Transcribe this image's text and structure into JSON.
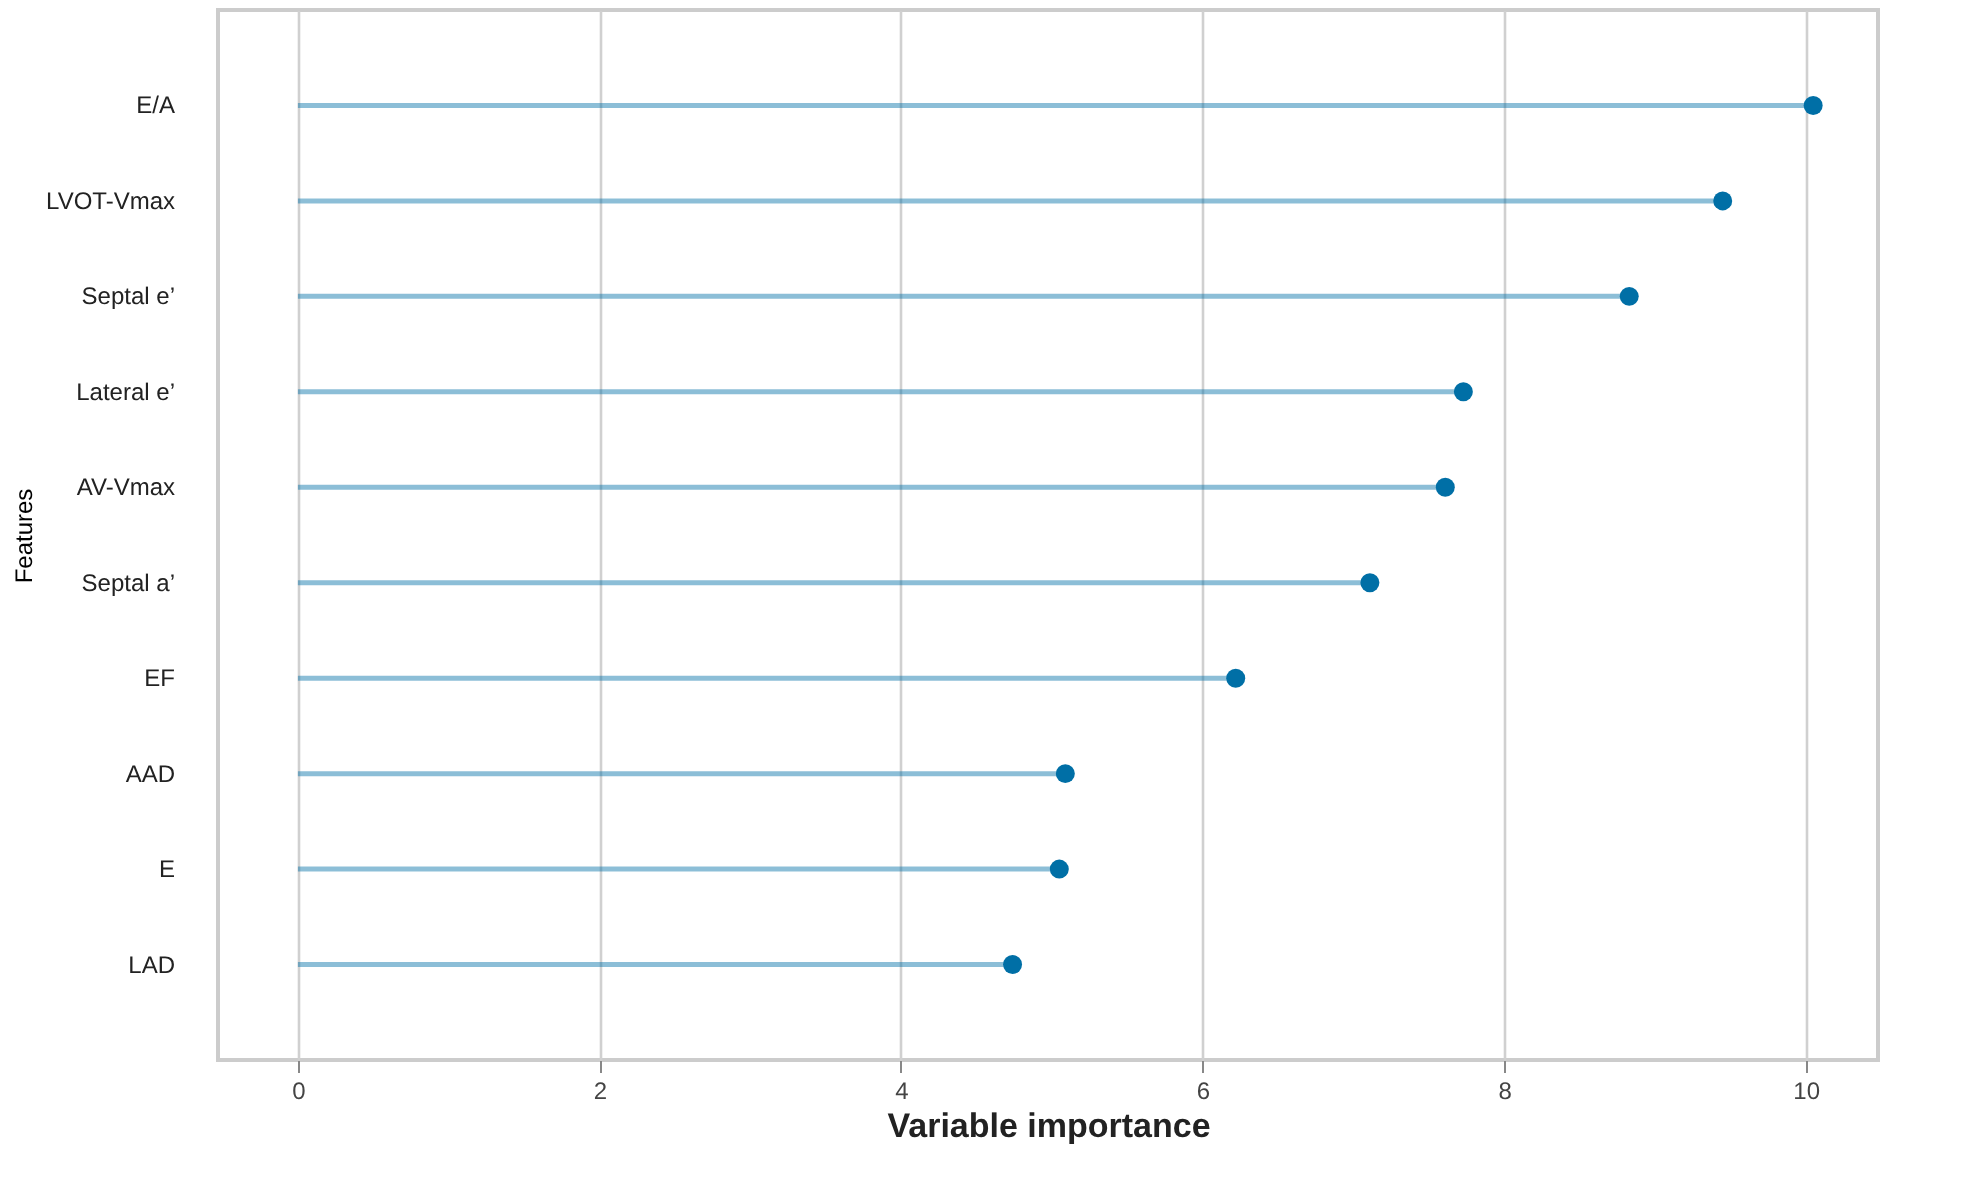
{
  "chart_data": {
    "type": "lollipop",
    "orientation": "horizontal",
    "categories": [
      "E/A",
      "LVOT-Vmax",
      "Septal e’",
      "Lateral e’",
      "AV-Vmax",
      "Septal a’",
      "EF",
      "AAD",
      "E",
      "LAD"
    ],
    "series": [
      {
        "color": "#006fa6",
        "values": [
          10.05,
          9.45,
          8.83,
          7.73,
          7.61,
          7.11,
          6.22,
          5.09,
          5.05,
          4.74
        ]
      }
    ],
    "xlim": [
      -0.53,
      10.48
    ],
    "xticks": [
      0,
      2,
      4,
      6,
      8,
      10
    ],
    "xlabel": "Variable importance",
    "ylabel": "Features",
    "grid": "x",
    "marker": "circle"
  }
}
